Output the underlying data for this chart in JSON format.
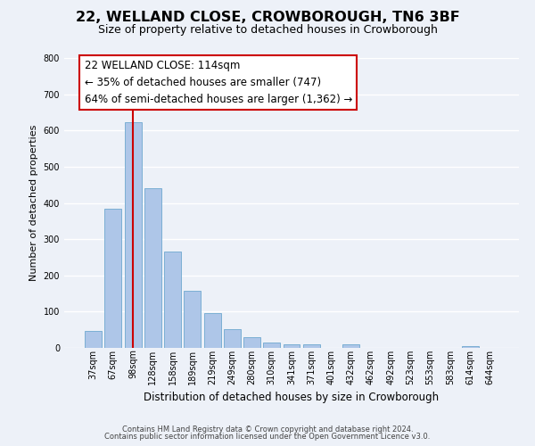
{
  "title": "22, WELLAND CLOSE, CROWBOROUGH, TN6 3BF",
  "subtitle": "Size of property relative to detached houses in Crowborough",
  "xlabel": "Distribution of detached houses by size in Crowborough",
  "ylabel": "Number of detached properties",
  "bar_values": [
    47,
    383,
    623,
    441,
    267,
    157,
    95,
    51,
    30,
    16,
    11,
    11,
    0,
    11,
    0,
    0,
    0,
    0,
    0,
    6,
    0
  ],
  "categories": [
    "37sqm",
    "67sqm",
    "98sqm",
    "128sqm",
    "158sqm",
    "189sqm",
    "219sqm",
    "249sqm",
    "280sqm",
    "310sqm",
    "341sqm",
    "371sqm",
    "401sqm",
    "432sqm",
    "462sqm",
    "492sqm",
    "523sqm",
    "553sqm",
    "583sqm",
    "614sqm",
    "644sqm"
  ],
  "bar_color": "#aec6e8",
  "bar_edge_color": "#7bafd4",
  "vline_x": 2.0,
  "vline_color": "#cc0000",
  "annotation_line1": "22 WELLAND CLOSE: 114sqm",
  "annotation_line2": "← 35% of detached houses are smaller (747)",
  "annotation_line3": "64% of semi-detached houses are larger (1,362) →",
  "annotation_box_color": "#ffffff",
  "annotation_box_edge": "#cc0000",
  "ylim": [
    0,
    800
  ],
  "yticks": [
    0,
    100,
    200,
    300,
    400,
    500,
    600,
    700,
    800
  ],
  "background_color": "#edf1f8",
  "grid_color": "#ffffff",
  "footer_line1": "Contains HM Land Registry data © Crown copyright and database right 2024.",
  "footer_line2": "Contains public sector information licensed under the Open Government Licence v3.0.",
  "title_fontsize": 11.5,
  "subtitle_fontsize": 9,
  "xlabel_fontsize": 8.5,
  "ylabel_fontsize": 8,
  "tick_fontsize": 7,
  "footer_fontsize": 6,
  "ann_fontsize": 8.5
}
